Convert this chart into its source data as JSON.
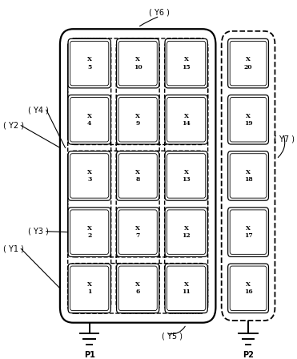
{
  "fig_width": 3.71,
  "fig_height": 4.48,
  "bg_color": "#ffffff",
  "cells": [
    {
      "label": "X\n1",
      "col": 0,
      "row": 0
    },
    {
      "label": "X\n2",
      "col": 0,
      "row": 1
    },
    {
      "label": "X\n3",
      "col": 0,
      "row": 2
    },
    {
      "label": "X\n4",
      "col": 0,
      "row": 3
    },
    {
      "label": "X\n5",
      "col": 0,
      "row": 4
    },
    {
      "label": "X\n6",
      "col": 1,
      "row": 0
    },
    {
      "label": "X\n7",
      "col": 1,
      "row": 1
    },
    {
      "label": "X\n8",
      "col": 1,
      "row": 2
    },
    {
      "label": "X\n9",
      "col": 1,
      "row": 3
    },
    {
      "label": "X\n10",
      "col": 1,
      "row": 4
    },
    {
      "label": "X\n11",
      "col": 2,
      "row": 0
    },
    {
      "label": "X\n12",
      "col": 2,
      "row": 1
    },
    {
      "label": "X\n13",
      "col": 2,
      "row": 2
    },
    {
      "label": "X\n14",
      "col": 2,
      "row": 3
    },
    {
      "label": "X\n15",
      "col": 2,
      "row": 4
    },
    {
      "label": "X\n16",
      "col": 3,
      "row": 0
    },
    {
      "label": "X\n17",
      "col": 3,
      "row": 1
    },
    {
      "label": "X\n18",
      "col": 3,
      "row": 2
    },
    {
      "label": "X\n19",
      "col": 3,
      "row": 3
    },
    {
      "label": "X\n20",
      "col": 3,
      "row": 4
    }
  ]
}
